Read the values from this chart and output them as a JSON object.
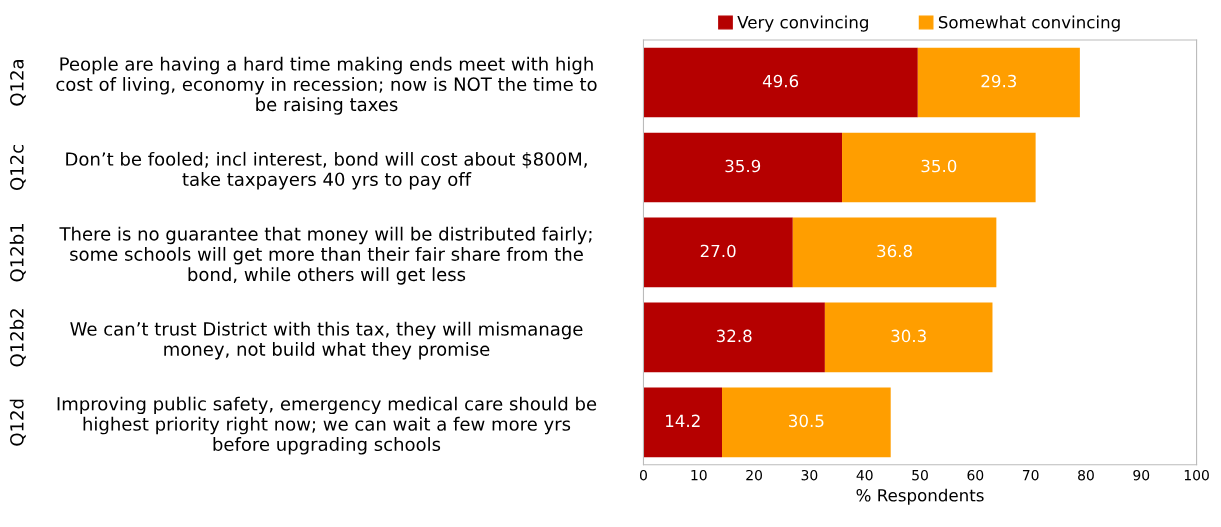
{
  "chart_data": {
    "type": "bar",
    "orientation": "horizontal",
    "stacked": true,
    "categories": [
      "People are having a hard time making ends meet with high\ncost of living, economy in recession; now is NOT the time to\nbe raising taxes",
      "Don’t be fooled; incl interest, bond will cost about $800M,\ntake taxpayers 40 yrs to pay off",
      "There is no guarantee that money will be distributed fairly;\nsome schools will get more than their fair share from the\nbond, while others will get less",
      "We can’t trust District with this tax, they will mismanage\nmoney, not build what they promise",
      "Improving public safety, emergency medical care should be\nhighest priority right now; we can wait a few more yrs\nbefore upgrading schools"
    ],
    "series": [
      {
        "name": "Very convincing",
        "color": "#b50000",
        "values": [
          49.6,
          35.9,
          27.0,
          32.8,
          14.2
        ],
        "value_labels": [
          "49.6",
          "35.9",
          "27.0",
          "32.8",
          "14.2"
        ]
      },
      {
        "name": "Somewhat convincing",
        "color": "#ff9e00",
        "values": [
          29.3,
          35.0,
          36.8,
          30.3,
          30.5
        ],
        "value_labels": [
          "29.3",
          "35.0",
          "36.8",
          "30.3",
          "30.5"
        ]
      }
    ],
    "xlabel": "% Respondents",
    "xlim": [
      0,
      100
    ],
    "xticks": [
      0,
      10,
      20,
      30,
      40,
      50,
      60,
      70,
      80,
      90,
      100
    ],
    "annotations": [
      "Q12a",
      "Q12c",
      "Q12b1",
      "Q12b2",
      "Q12d"
    ],
    "legend": "top",
    "grid": false
  }
}
